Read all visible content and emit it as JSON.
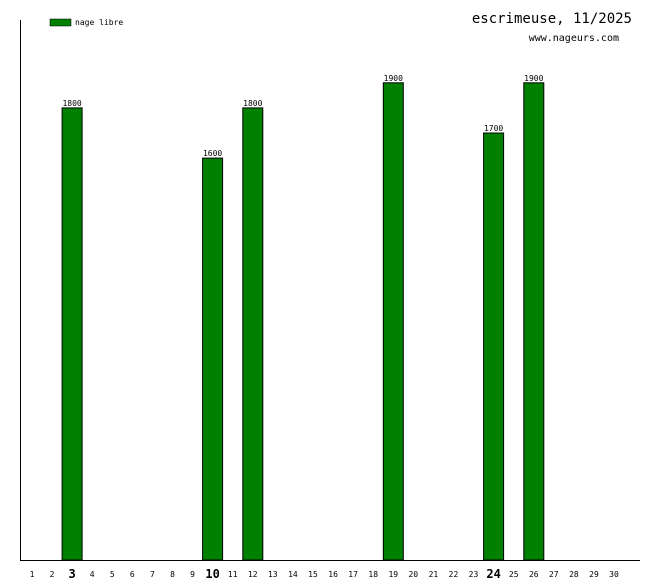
{
  "chart_data": {
    "type": "bar",
    "title": "escrimeuse, 11/2025",
    "subtitle": "www.nageurs.com",
    "legend": {
      "label": "nage libre",
      "position": "top-left"
    },
    "series": [
      {
        "name": "nage libre",
        "color": "#008000",
        "points": [
          {
            "x": 3,
            "y": 1800,
            "label": "1800"
          },
          {
            "x": 10,
            "y": 1600,
            "label": "1600"
          },
          {
            "x": 12,
            "y": 1800,
            "label": "1800"
          },
          {
            "x": 19,
            "y": 1900,
            "label": "1900"
          },
          {
            "x": 24,
            "y": 1700,
            "label": "1700"
          },
          {
            "x": 26,
            "y": 1900,
            "label": "1900"
          }
        ]
      }
    ],
    "x_ticks": [
      "1",
      "2",
      "3",
      "4",
      "5",
      "6",
      "7",
      "8",
      "9",
      "10",
      "11",
      "12",
      "13",
      "14",
      "15",
      "16",
      "17",
      "18",
      "19",
      "20",
      "21",
      "22",
      "23",
      "24",
      "25",
      "26",
      "27",
      "28",
      "29",
      "30"
    ],
    "highlighted_ticks": [
      "3",
      "10",
      "24"
    ],
    "xlim": [
      1,
      30
    ],
    "ylim": [
      0,
      2150
    ],
    "grid": false,
    "xlabel": "",
    "ylabel": ""
  }
}
